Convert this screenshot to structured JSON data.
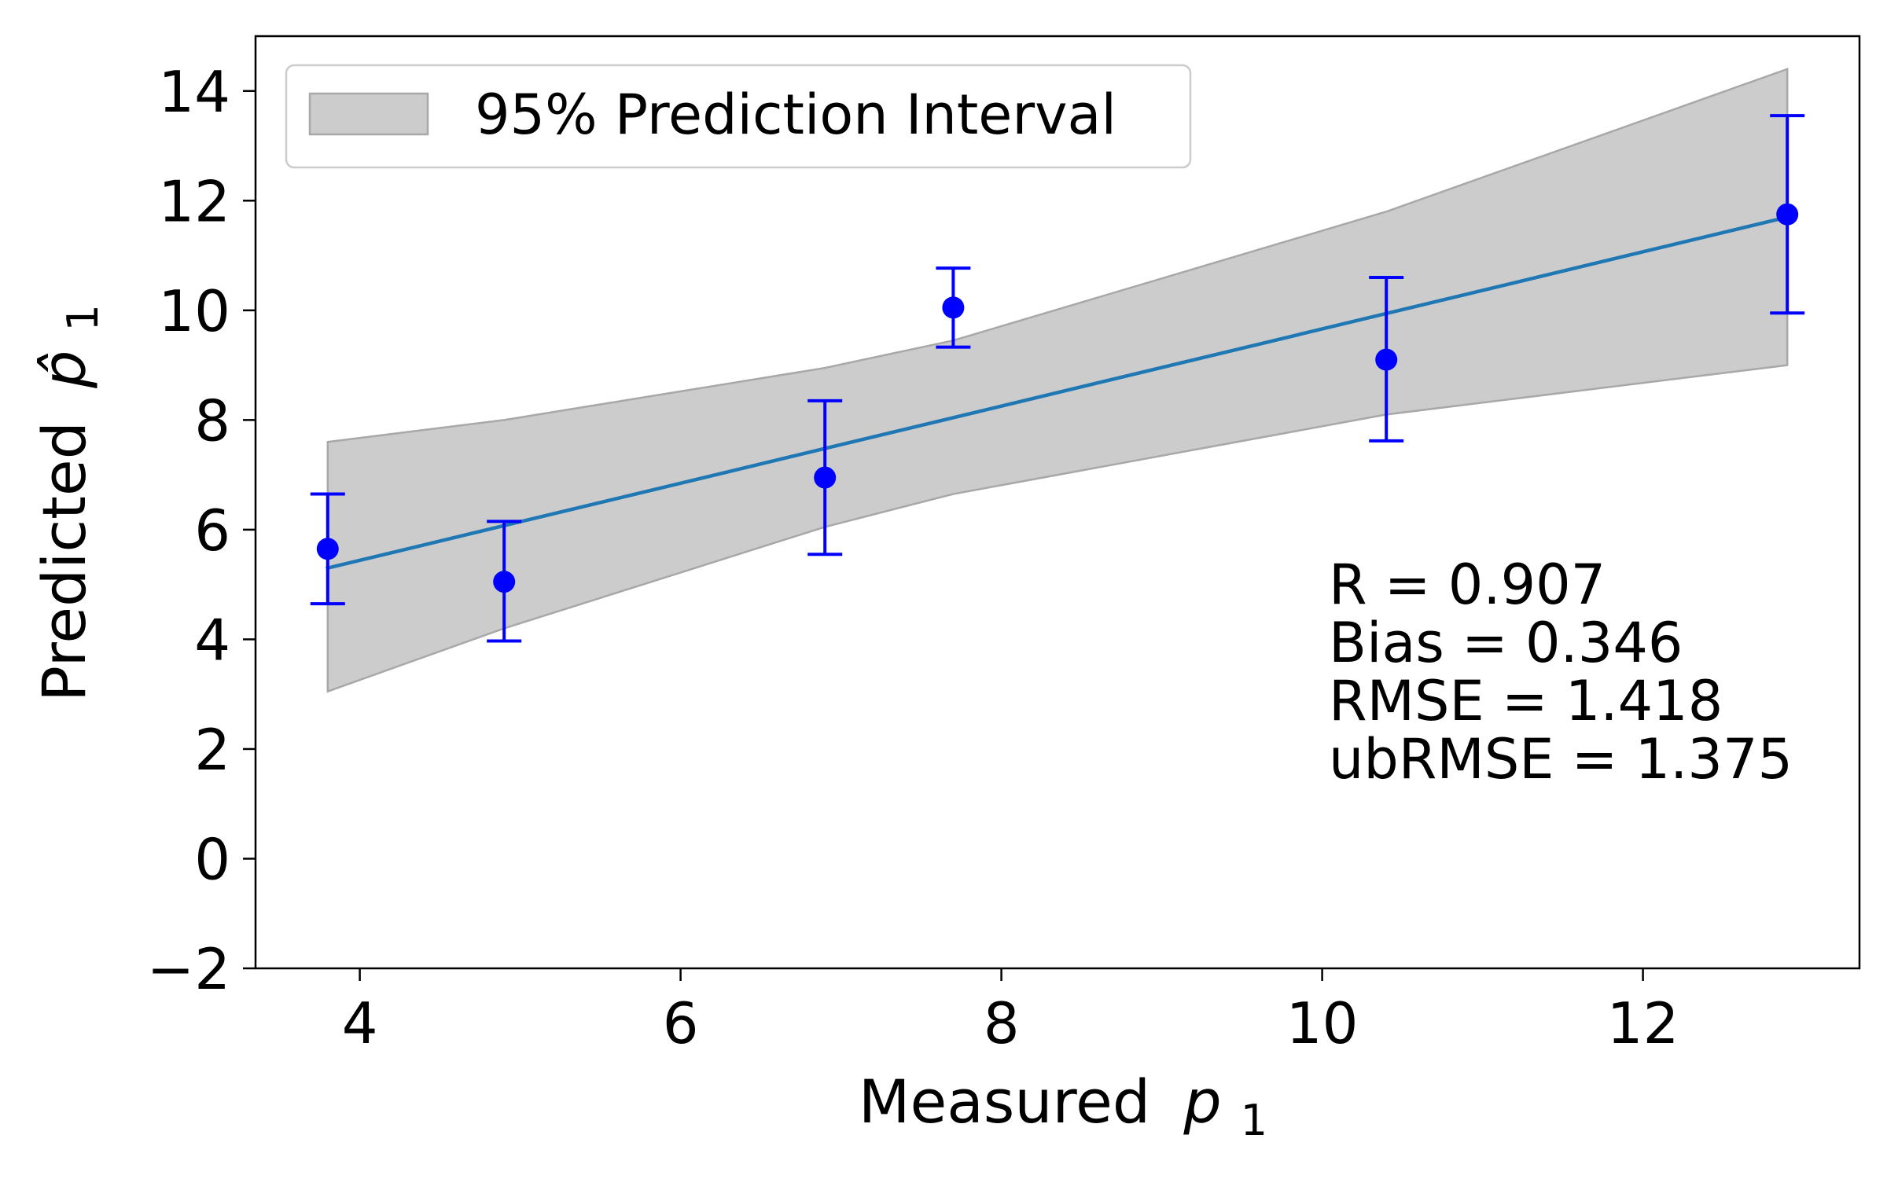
{
  "chart_data": {
    "type": "scatter",
    "title": "",
    "xlabel": "Measured",
    "xlabel_math": "p",
    "xlabel_sub": "1",
    "ylabel": "Predicted",
    "ylabel_math": "p̂",
    "ylabel_sub": "1",
    "xlim": [
      3.35,
      13.35
    ],
    "ylim": [
      -2,
      15
    ],
    "xticks": [
      4,
      6,
      8,
      10,
      12
    ],
    "yticks": [
      -2,
      0,
      2,
      4,
      6,
      8,
      10,
      12,
      14
    ],
    "xtick_labels": [
      "4",
      "6",
      "8",
      "10",
      "12"
    ],
    "ytick_labels": [
      "−2",
      "0",
      "2",
      "4",
      "6",
      "8",
      "10",
      "12",
      "14"
    ],
    "grid": false,
    "legend": {
      "position": "top-left",
      "entries": [
        {
          "label": "95% Prediction Interval",
          "color": "#cccccc"
        }
      ]
    },
    "series": [
      {
        "name": "Predictions",
        "kind": "errorbar-scatter",
        "color": "#0000ff",
        "points": [
          {
            "x": 3.8,
            "y": 5.65,
            "lower": 4.65,
            "upper": 6.65
          },
          {
            "x": 4.9,
            "y": 5.05,
            "lower": 3.97,
            "upper": 6.15
          },
          {
            "x": 6.9,
            "y": 6.95,
            "lower": 5.55,
            "upper": 8.35
          },
          {
            "x": 7.7,
            "y": 10.05,
            "lower": 9.33,
            "upper": 10.77
          },
          {
            "x": 10.4,
            "y": 9.1,
            "lower": 7.62,
            "upper": 10.6
          },
          {
            "x": 12.9,
            "y": 11.75,
            "lower": 9.95,
            "upper": 13.55
          }
        ]
      },
      {
        "name": "Fit line",
        "kind": "line",
        "color": "#1f77b4",
        "x": [
          3.8,
          12.9
        ],
        "y": [
          5.3,
          11.7
        ]
      },
      {
        "name": "95% Prediction Interval",
        "kind": "band",
        "color": "#cccccc",
        "edge_color": "#a8a8a8",
        "x": [
          3.8,
          4.9,
          6.9,
          7.7,
          10.4,
          12.9
        ],
        "upper": [
          7.6,
          8.0,
          8.95,
          9.45,
          11.8,
          14.4
        ],
        "lower": [
          3.05,
          4.2,
          6.05,
          6.65,
          8.1,
          9.0
        ]
      }
    ],
    "annotations": [
      "R = 0.907",
      "Bias = 0.346",
      "RMSE = 1.418",
      "ubRMSE = 1.375"
    ]
  }
}
